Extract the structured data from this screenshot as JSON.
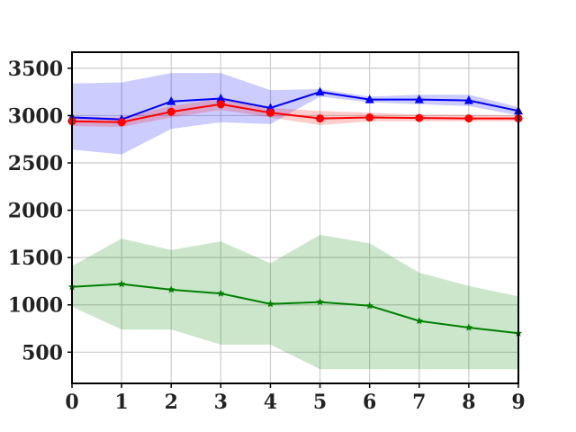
{
  "chart_data": {
    "type": "line",
    "x": [
      0,
      1,
      2,
      3,
      4,
      5,
      6,
      7,
      8,
      9
    ],
    "xlim": [
      0,
      9
    ],
    "ylim": [
      170,
      3670
    ],
    "xticks": [
      "0",
      "1",
      "2",
      "3",
      "4",
      "5",
      "6",
      "7",
      "8",
      "9"
    ],
    "yticks": [
      "500",
      "1000",
      "1500",
      "2000",
      "2500",
      "3000",
      "3500"
    ],
    "grid": true,
    "series": [
      {
        "color": "#0000ff",
        "fill_color": "#0000ff",
        "marker": "triangle",
        "values": [
          2980,
          2960,
          3150,
          3180,
          3080,
          3250,
          3170,
          3170,
          3160,
          3050
        ],
        "band_upper": [
          3340,
          3350,
          3450,
          3450,
          3270,
          3280,
          3200,
          3220,
          3220,
          3090
        ],
        "band_lower": [
          2640,
          2590,
          2860,
          2930,
          2910,
          3200,
          3140,
          3120,
          3100,
          3000
        ]
      },
      {
        "color": "#ff0000",
        "fill_color": "#ff0000",
        "marker": "circle",
        "values": [
          2940,
          2930,
          3040,
          3120,
          3030,
          2970,
          2980,
          2975,
          2970,
          2970
        ],
        "band_upper": [
          2990,
          2980,
          3100,
          3180,
          3080,
          3050,
          3030,
          3010,
          3010,
          3000
        ],
        "band_lower": [
          2890,
          2880,
          2980,
          3060,
          2980,
          2900,
          2940,
          2940,
          2940,
          2940
        ]
      },
      {
        "color": "#008000",
        "fill_color": "#008000",
        "marker": "star",
        "values": [
          1190,
          1220,
          1160,
          1120,
          1010,
          1030,
          990,
          830,
          760,
          700
        ],
        "band_upper": [
          1410,
          1700,
          1580,
          1670,
          1440,
          1740,
          1650,
          1340,
          1200,
          1090
        ],
        "band_lower": [
          980,
          740,
          740,
          580,
          580,
          320,
          320,
          320,
          320,
          320
        ]
      }
    ]
  }
}
